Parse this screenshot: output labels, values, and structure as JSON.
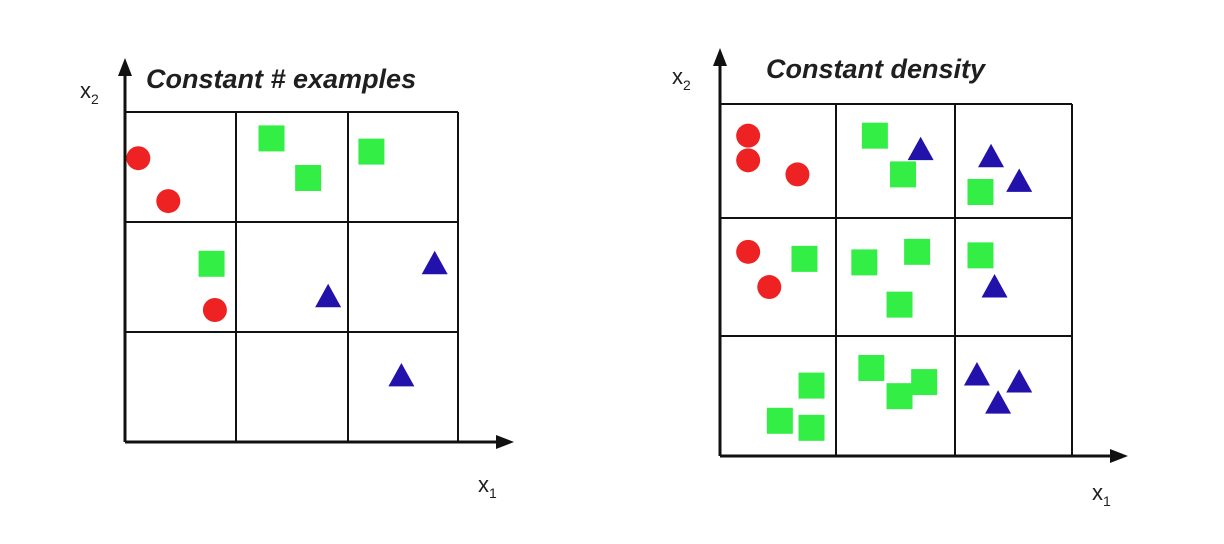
{
  "colors": {
    "circle": "#ee2222",
    "square": "#33ee44",
    "triangle": "#2211aa",
    "grid": "#111111"
  },
  "panels": [
    {
      "id": "constant-examples",
      "title": "Constant # examples",
      "x_axis_label": "x",
      "x_axis_sub": "1",
      "y_axis_label": "x",
      "y_axis_sub": "2",
      "grid": {
        "cols": [
          0,
          0.34,
          0.67,
          1
        ],
        "rows": [
          0,
          0.33,
          0.66,
          1
        ]
      },
      "points": [
        {
          "shape": "circle",
          "x": 0.04,
          "y": 0.86
        },
        {
          "shape": "circle",
          "x": 0.13,
          "y": 0.73
        },
        {
          "shape": "square",
          "x": 0.44,
          "y": 0.92
        },
        {
          "shape": "square",
          "x": 0.55,
          "y": 0.8
        },
        {
          "shape": "square",
          "x": 0.74,
          "y": 0.88
        },
        {
          "shape": "square",
          "x": 0.26,
          "y": 0.54
        },
        {
          "shape": "circle",
          "x": 0.27,
          "y": 0.4
        },
        {
          "shape": "triangle",
          "x": 0.61,
          "y": 0.44
        },
        {
          "shape": "triangle",
          "x": 0.93,
          "y": 0.54
        },
        {
          "shape": "triangle",
          "x": 0.83,
          "y": 0.2
        }
      ]
    },
    {
      "id": "constant-density",
      "title": "Constant density",
      "x_axis_label": "x",
      "x_axis_sub": "1",
      "y_axis_label": "x",
      "y_axis_sub": "2",
      "grid": {
        "cols": [
          0,
          0.33,
          0.66,
          1
        ],
        "rows": [
          0,
          0.33,
          0.66,
          1
        ]
      },
      "points": [
        {
          "shape": "circle",
          "x": 0.08,
          "y": 0.91
        },
        {
          "shape": "circle",
          "x": 0.08,
          "y": 0.84
        },
        {
          "shape": "circle",
          "x": 0.22,
          "y": 0.8
        },
        {
          "shape": "square",
          "x": 0.44,
          "y": 0.91
        },
        {
          "shape": "triangle",
          "x": 0.57,
          "y": 0.87
        },
        {
          "shape": "square",
          "x": 0.52,
          "y": 0.8
        },
        {
          "shape": "triangle",
          "x": 0.77,
          "y": 0.85
        },
        {
          "shape": "triangle",
          "x": 0.85,
          "y": 0.78
        },
        {
          "shape": "square",
          "x": 0.74,
          "y": 0.75
        },
        {
          "shape": "circle",
          "x": 0.08,
          "y": 0.58
        },
        {
          "shape": "circle",
          "x": 0.14,
          "y": 0.48
        },
        {
          "shape": "square",
          "x": 0.24,
          "y": 0.56
        },
        {
          "shape": "square",
          "x": 0.41,
          "y": 0.55
        },
        {
          "shape": "square",
          "x": 0.56,
          "y": 0.58
        },
        {
          "shape": "square",
          "x": 0.51,
          "y": 0.43
        },
        {
          "shape": "square",
          "x": 0.74,
          "y": 0.57
        },
        {
          "shape": "triangle",
          "x": 0.78,
          "y": 0.48
        },
        {
          "shape": "square",
          "x": 0.26,
          "y": 0.2
        },
        {
          "shape": "square",
          "x": 0.17,
          "y": 0.1
        },
        {
          "shape": "square",
          "x": 0.26,
          "y": 0.08
        },
        {
          "shape": "square",
          "x": 0.43,
          "y": 0.25
        },
        {
          "shape": "square",
          "x": 0.51,
          "y": 0.17
        },
        {
          "shape": "square",
          "x": 0.58,
          "y": 0.21
        },
        {
          "shape": "triangle",
          "x": 0.73,
          "y": 0.23
        },
        {
          "shape": "triangle",
          "x": 0.85,
          "y": 0.21
        },
        {
          "shape": "triangle",
          "x": 0.79,
          "y": 0.15
        }
      ]
    }
  ]
}
